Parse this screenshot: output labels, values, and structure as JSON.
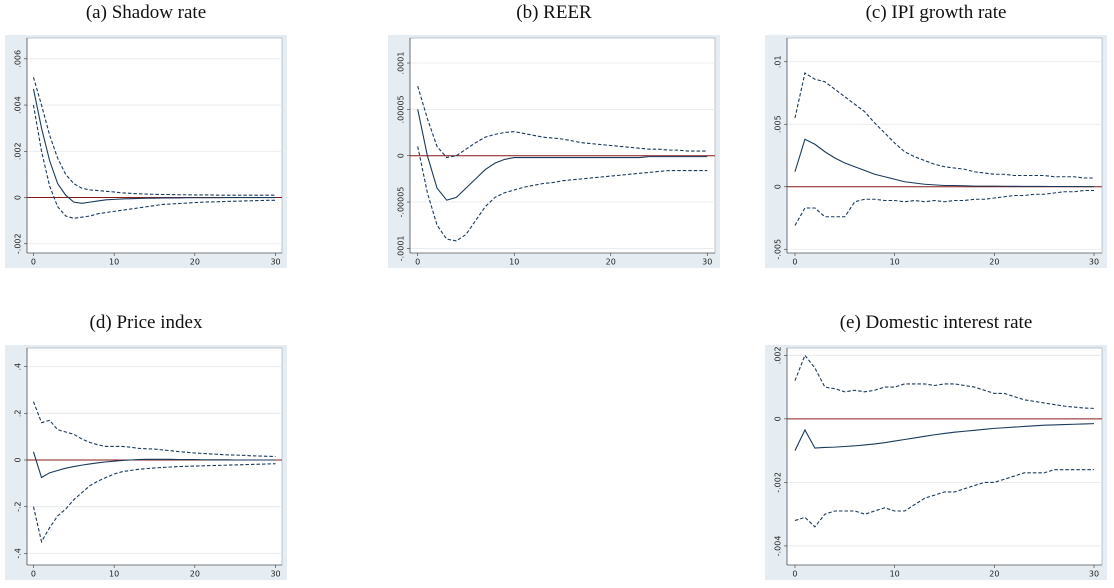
{
  "chart_data": [
    {
      "type": "line",
      "title": "(a) Shadow rate",
      "x": [
        0,
        1,
        2,
        3,
        4,
        5,
        6,
        7,
        8,
        9,
        10,
        11,
        12,
        13,
        14,
        15,
        16,
        17,
        18,
        19,
        20,
        21,
        22,
        23,
        24,
        25,
        26,
        27,
        28,
        29,
        30
      ],
      "xlim": [
        -0.8,
        30.8
      ],
      "xticks": [
        0,
        10,
        20,
        30
      ],
      "ylim": [
        -0.0024,
        0.0069
      ],
      "yticks": [
        {
          "value": -0.002,
          "label": "-.002"
        },
        0,
        {
          "value": 0.002,
          "label": ".002"
        },
        {
          "value": 0.004,
          "label": ".004"
        },
        {
          "value": 0.006,
          "label": ".006"
        }
      ],
      "grid": true,
      "hline": {
        "value": 0,
        "color": "#8b1a1a"
      },
      "series": [
        {
          "color": "#1a3a5c",
          "dash": false,
          "values": [
            0.0047,
            0.003,
            0.0016,
            0.0006,
            0.0001,
            -0.0002,
            -0.00025,
            -0.0002,
            -0.00015,
            -0.0001,
            -8e-05,
            -6e-05,
            -5e-05,
            -4e-05,
            -3e-05,
            -3e-05,
            -2e-05,
            -2e-05,
            -2e-05,
            -1e-05,
            -1e-05,
            -1e-05,
            -1e-05,
            -1e-05,
            0,
            0,
            0,
            0,
            0,
            0,
            0
          ]
        },
        {
          "color": "#1a3a5c",
          "dash": true,
          "values": [
            0.0052,
            0.004,
            0.0027,
            0.0017,
            0.001,
            0.0006,
            0.0004,
            0.00033,
            0.0003,
            0.00027,
            0.00024,
            0.0002,
            0.00018,
            0.00016,
            0.00015,
            0.00014,
            0.00013,
            0.00013,
            0.00012,
            0.00012,
            0.00011,
            0.00011,
            0.00011,
            0.0001,
            0.0001,
            0.0001,
            0.0001,
            0.0001,
            0.0001,
            0.0001,
            0.0001
          ]
        },
        {
          "color": "#1a3a5c",
          "dash": true,
          "values": [
            0.004,
            0.002,
            0.0005,
            -0.0004,
            -0.0008,
            -0.0009,
            -0.00085,
            -0.0008,
            -0.0007,
            -0.00065,
            -0.0006,
            -0.00055,
            -0.0005,
            -0.00045,
            -0.0004,
            -0.00035,
            -0.0003,
            -0.00028,
            -0.00026,
            -0.00024,
            -0.00022,
            -0.0002,
            -0.00019,
            -0.00018,
            -0.00017,
            -0.00016,
            -0.00015,
            -0.00014,
            -0.00013,
            -0.00012,
            -0.00012
          ]
        }
      ]
    },
    {
      "type": "line",
      "title": "(b) REER",
      "x": [
        0,
        1,
        2,
        3,
        4,
        5,
        6,
        7,
        8,
        9,
        10,
        11,
        12,
        13,
        14,
        15,
        16,
        17,
        18,
        19,
        20,
        21,
        22,
        23,
        24,
        25,
        26,
        27,
        28,
        29,
        30
      ],
      "xlim": [
        -0.8,
        30.8
      ],
      "xticks": [
        0,
        10,
        20,
        30
      ],
      "ylim": [
        -0.000105,
        0.000127
      ],
      "yticks": [
        {
          "value": -0.0001,
          "label": "-.0001"
        },
        {
          "value": -5e-05,
          "label": "-.00005"
        },
        0,
        {
          "value": 5e-05,
          "label": ".00005"
        },
        {
          "value": 0.0001,
          "label": ".0001"
        }
      ],
      "grid": true,
      "hline": {
        "value": 0,
        "color": "#8b1a1a"
      },
      "series": [
        {
          "color": "#1a3a5c",
          "dash": false,
          "values": [
            5e-05,
            0,
            -3.5e-05,
            -4.8e-05,
            -4.5e-05,
            -3.5e-05,
            -2.5e-05,
            -1.5e-05,
            -8e-06,
            -4e-06,
            -2e-06,
            -2e-06,
            -2e-06,
            -2e-06,
            -2e-06,
            -2e-06,
            -2e-06,
            -2e-06,
            -2e-06,
            -2e-06,
            -2e-06,
            -2e-06,
            -2e-06,
            -2e-06,
            -1e-06,
            -1e-06,
            -1e-06,
            -1e-06,
            -1e-06,
            -1e-06,
            -1e-06
          ]
        },
        {
          "color": "#1a3a5c",
          "dash": true,
          "values": [
            7.5e-05,
            4e-05,
            1e-05,
            -2e-06,
            0,
            7e-06,
            1.4e-05,
            2e-05,
            2.3e-05,
            2.5e-05,
            2.6e-05,
            2.4e-05,
            2.2e-05,
            2e-05,
            1.9e-05,
            1.8e-05,
            1.6e-05,
            1.4e-05,
            1.3e-05,
            1.2e-05,
            1.1e-05,
            1e-05,
            9e-06,
            8e-06,
            7e-06,
            7e-06,
            6e-06,
            6e-06,
            5e-06,
            5e-06,
            5e-06
          ]
        },
        {
          "color": "#1a3a5c",
          "dash": true,
          "values": [
            1e-05,
            -4e-05,
            -7.5e-05,
            -9e-05,
            -9.2e-05,
            -8.5e-05,
            -7e-05,
            -5.5e-05,
            -4.5e-05,
            -4e-05,
            -3.7e-05,
            -3.4e-05,
            -3.2e-05,
            -3e-05,
            -2.9e-05,
            -2.7e-05,
            -2.6e-05,
            -2.5e-05,
            -2.4e-05,
            -2.3e-05,
            -2.2e-05,
            -2.1e-05,
            -2e-05,
            -1.9e-05,
            -1.8e-05,
            -1.7e-05,
            -1.6e-05,
            -1.6e-05,
            -1.6e-05,
            -1.6e-05,
            -1.6e-05
          ]
        }
      ]
    },
    {
      "type": "line",
      "title": "(c) IPI growth rate",
      "x": [
        0,
        1,
        2,
        3,
        4,
        5,
        6,
        7,
        8,
        9,
        10,
        11,
        12,
        13,
        14,
        15,
        16,
        17,
        18,
        19,
        20,
        21,
        22,
        23,
        24,
        25,
        26,
        27,
        28,
        29,
        30
      ],
      "xlim": [
        -0.8,
        30.8
      ],
      "xticks": [
        0,
        10,
        20,
        30
      ],
      "ylim": [
        -0.0053,
        0.0119
      ],
      "yticks": [
        {
          "value": -0.005,
          "label": "-.005"
        },
        0,
        {
          "value": 0.005,
          "label": ".005"
        },
        {
          "value": 0.01,
          "label": ".01"
        }
      ],
      "grid": true,
      "hline": {
        "value": 0,
        "color": "#8b1a1a"
      },
      "series": [
        {
          "color": "#1a3a5c",
          "dash": false,
          "values": [
            0.0012,
            0.0038,
            0.0034,
            0.0028,
            0.0023,
            0.0019,
            0.0016,
            0.0013,
            0.001,
            0.0008,
            0.0006,
            0.0004,
            0.0003,
            0.0002,
            0.00015,
            0.0001,
            0.0001,
            8e-05,
            5e-05,
            5e-05,
            5e-05,
            4e-05,
            4e-05,
            3e-05,
            3e-05,
            3e-05,
            2e-05,
            2e-05,
            2e-05,
            1e-05,
            1e-05
          ]
        },
        {
          "color": "#1a3a5c",
          "dash": true,
          "values": [
            0.0055,
            0.0091,
            0.0086,
            0.0084,
            0.0078,
            0.0072,
            0.0066,
            0.006,
            0.0051,
            0.0043,
            0.0035,
            0.0028,
            0.0024,
            0.0021,
            0.0018,
            0.0016,
            0.0015,
            0.0014,
            0.0012,
            0.0011,
            0.001,
            0.001,
            0.0009,
            0.0009,
            0.0009,
            0.0009,
            0.0008,
            0.0008,
            0.0008,
            0.0007,
            0.0007
          ]
        },
        {
          "color": "#1a3a5c",
          "dash": true,
          "values": [
            -0.0031,
            -0.0017,
            -0.0017,
            -0.0024,
            -0.0024,
            -0.0024,
            -0.0012,
            -0.001,
            -0.001,
            -0.0011,
            -0.0011,
            -0.0012,
            -0.0011,
            -0.0012,
            -0.0011,
            -0.0012,
            -0.0011,
            -0.0011,
            -0.001,
            -0.001,
            -0.0009,
            -0.0008,
            -0.0007,
            -0.0007,
            -0.0006,
            -0.0006,
            -0.0005,
            -0.0004,
            -0.0004,
            -0.0003,
            -0.0003
          ]
        }
      ]
    },
    {
      "type": "line",
      "title": "(d) Price index",
      "x": [
        0,
        1,
        2,
        3,
        4,
        5,
        6,
        7,
        8,
        9,
        10,
        11,
        12,
        13,
        14,
        15,
        16,
        17,
        18,
        19,
        20,
        21,
        22,
        23,
        24,
        25,
        26,
        27,
        28,
        29,
        30
      ],
      "xlim": [
        -0.8,
        30.8
      ],
      "xticks": [
        0,
        10,
        20,
        30
      ],
      "ylim": [
        -0.45,
        0.48
      ],
      "yticks": [
        {
          "value": -0.4,
          "label": "-.4"
        },
        {
          "value": -0.2,
          "label": "-.2"
        },
        0,
        {
          "value": 0.2,
          "label": ".2"
        },
        {
          "value": 0.4,
          "label": ".4"
        }
      ],
      "grid": true,
      "hline": {
        "value": 0,
        "color": "#8b1a1a"
      },
      "series": [
        {
          "color": "#1a3a5c",
          "dash": false,
          "values": [
            0.035,
            -0.075,
            -0.055,
            -0.045,
            -0.035,
            -0.028,
            -0.022,
            -0.017,
            -0.012,
            -0.008,
            -0.005,
            -0.002,
            0,
            0.002,
            0.003,
            0.003,
            0.003,
            0.003,
            0.002,
            0.002,
            0.002,
            0.001,
            0.001,
            0.001,
            0.001,
            0,
            0,
            0,
            0,
            0,
            0
          ]
        },
        {
          "color": "#1a3a5c",
          "dash": true,
          "values": [
            0.25,
            0.16,
            0.17,
            0.13,
            0.12,
            0.11,
            0.09,
            0.075,
            0.065,
            0.058,
            0.058,
            0.058,
            0.055,
            0.05,
            0.048,
            0.047,
            0.043,
            0.04,
            0.036,
            0.033,
            0.03,
            0.028,
            0.026,
            0.024,
            0.022,
            0.021,
            0.02,
            0.018,
            0.017,
            0.016,
            0.015
          ]
        },
        {
          "color": "#1a3a5c",
          "dash": true,
          "values": [
            -0.2,
            -0.35,
            -0.29,
            -0.24,
            -0.21,
            -0.17,
            -0.14,
            -0.11,
            -0.09,
            -0.075,
            -0.06,
            -0.05,
            -0.045,
            -0.04,
            -0.037,
            -0.034,
            -0.032,
            -0.03,
            -0.028,
            -0.027,
            -0.026,
            -0.025,
            -0.024,
            -0.023,
            -0.022,
            -0.021,
            -0.02,
            -0.019,
            -0.018,
            -0.017,
            -0.016
          ]
        }
      ]
    },
    {
      "type": "line",
      "title": "(e) Domestic interest rate",
      "x": [
        0,
        1,
        2,
        3,
        4,
        5,
        6,
        7,
        8,
        9,
        10,
        11,
        12,
        13,
        14,
        15,
        16,
        17,
        18,
        19,
        20,
        21,
        22,
        23,
        24,
        25,
        26,
        27,
        28,
        29,
        30
      ],
      "xlim": [
        -0.8,
        30.8
      ],
      "xticks": [
        0,
        10,
        20,
        30
      ],
      "ylim": [
        -0.0046,
        0.00223
      ],
      "yticks": [
        {
          "value": -0.004,
          "label": "-.004"
        },
        {
          "value": -0.002,
          "label": "-.002"
        },
        0,
        {
          "value": 0.002,
          "label": ".002"
        }
      ],
      "grid": true,
      "hline": {
        "value": 0,
        "color": "#8b1a1a"
      },
      "series": [
        {
          "color": "#1a3a5c",
          "dash": false,
          "values": [
            -0.001,
            -0.00035,
            -0.00092,
            -0.0009,
            -0.00089,
            -0.00087,
            -0.00085,
            -0.00082,
            -0.00079,
            -0.00075,
            -0.0007,
            -0.00065,
            -0.0006,
            -0.00055,
            -0.0005,
            -0.00046,
            -0.00042,
            -0.00039,
            -0.00036,
            -0.00033,
            -0.0003,
            -0.00028,
            -0.00026,
            -0.00024,
            -0.00022,
            -0.0002,
            -0.00019,
            -0.00018,
            -0.00017,
            -0.00016,
            -0.00015
          ]
        },
        {
          "color": "#1a3a5c",
          "dash": true,
          "values": [
            0.0012,
            0.002,
            0.0016,
            0.001,
            0.00095,
            0.00085,
            0.0009,
            0.00085,
            0.0009,
            0.001,
            0.001,
            0.0011,
            0.0011,
            0.0011,
            0.00105,
            0.0011,
            0.0011,
            0.00105,
            0.001,
            0.0009,
            0.0008,
            0.0008,
            0.0007,
            0.0006,
            0.00055,
            0.0005,
            0.00045,
            0.0004,
            0.00037,
            0.00034,
            0.00033
          ]
        },
        {
          "color": "#1a3a5c",
          "dash": true,
          "values": [
            -0.0032,
            -0.0031,
            -0.0034,
            -0.003,
            -0.0029,
            -0.0029,
            -0.0029,
            -0.003,
            -0.0029,
            -0.0028,
            -0.0029,
            -0.0029,
            -0.0027,
            -0.0025,
            -0.0024,
            -0.0023,
            -0.0023,
            -0.0022,
            -0.0021,
            -0.002,
            -0.002,
            -0.0019,
            -0.0018,
            -0.0017,
            -0.0017,
            -0.0017,
            -0.0016,
            -0.0016,
            -0.0016,
            -0.0016,
            -0.0016
          ]
        }
      ]
    }
  ]
}
